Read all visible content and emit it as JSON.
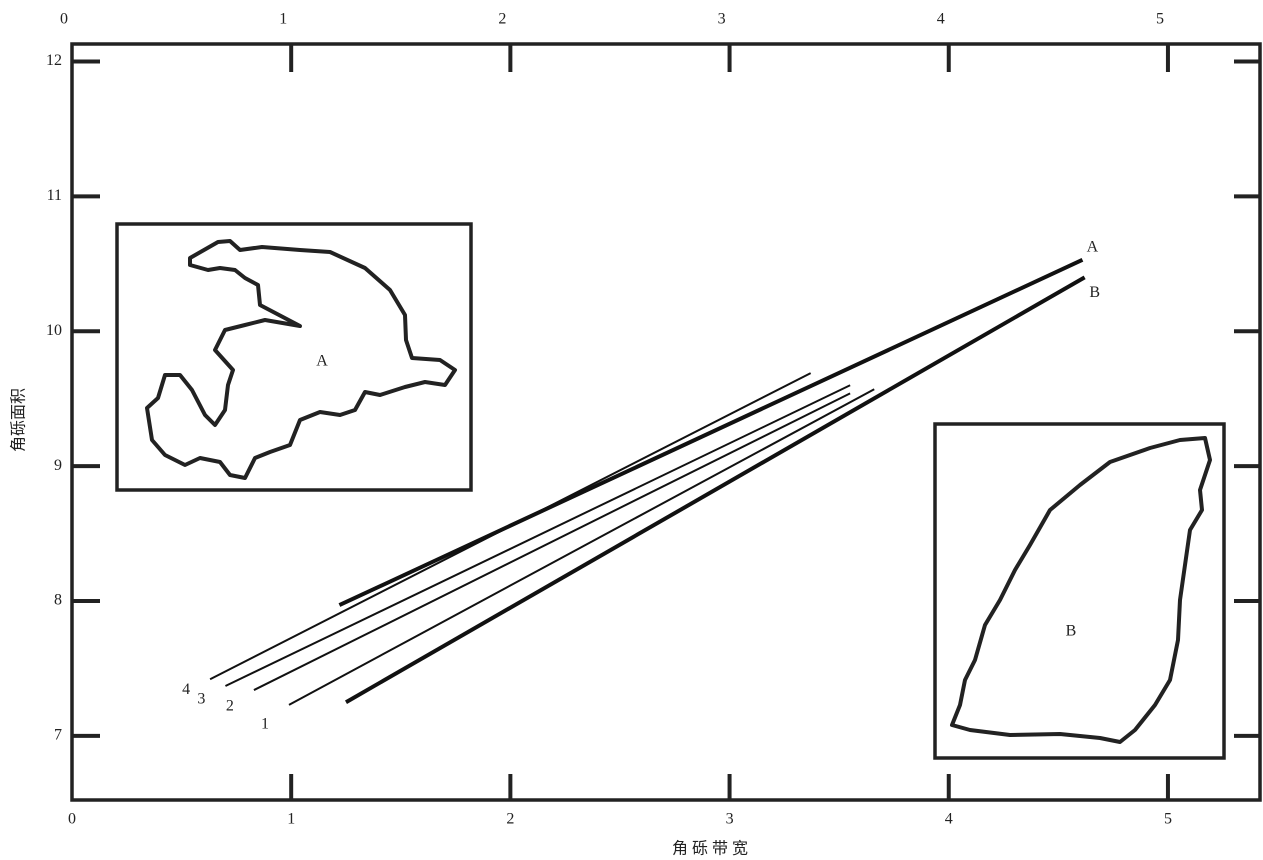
{
  "chart_data": {
    "type": "line",
    "xlabel": "角 砾 带 宽",
    "ylabel": "角砾面积",
    "xlim": [
      0,
      5.42
    ],
    "ylim": [
      6.525,
      12.13
    ],
    "xticks": [
      0,
      1,
      2,
      3,
      4,
      5
    ],
    "yticks": [
      7,
      8,
      9,
      10,
      11,
      12
    ],
    "series": [
      {
        "name": "A",
        "color": "#111111",
        "x": [
          1.22,
          4.61
        ],
        "values": [
          7.97,
          10.53
        ]
      },
      {
        "name": "B",
        "color": "#111111",
        "x": [
          1.25,
          4.62
        ],
        "values": [
          7.25,
          10.4
        ]
      },
      {
        "name": "1",
        "color": "#111111",
        "x": [
          0.99,
          3.66
        ],
        "values": [
          7.23,
          9.57
        ]
      },
      {
        "name": "2",
        "color": "#111111",
        "x": [
          0.83,
          3.55
        ],
        "values": [
          7.34,
          9.54
        ]
      },
      {
        "name": "3",
        "color": "#111111",
        "x": [
          0.7,
          3.55
        ],
        "values": [
          7.37,
          9.6
        ]
      },
      {
        "name": "4",
        "color": "#111111",
        "x": [
          0.63,
          3.37
        ],
        "values": [
          7.42,
          9.69
        ]
      }
    ],
    "annotations": [
      "A",
      "B"
    ]
  }
}
